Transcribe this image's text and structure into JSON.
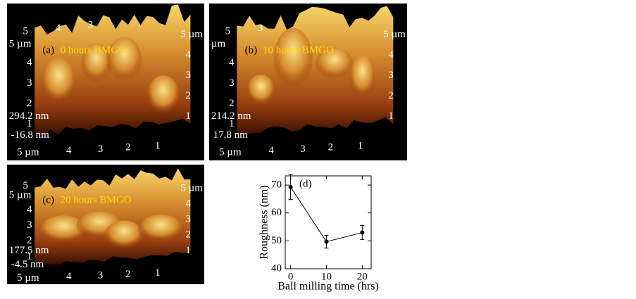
{
  "panels": [
    {
      "label": "(a)",
      "caption": "0 hours BMGO",
      "top_ticks": [
        "5",
        "4",
        "3"
      ],
      "unit_left": "5 µm",
      "left_ticks": [
        "4",
        "3",
        "2",
        "1"
      ],
      "z_max": "294.2 nm",
      "z_min": "-16.8 nm",
      "right_ticks": [
        "5 µm",
        "4",
        "3",
        "2",
        "1"
      ],
      "bottom_ticks": [
        "5 µm",
        "4",
        "3",
        "2",
        "1"
      ]
    },
    {
      "label": "(b)",
      "caption": "10 hours BMGO",
      "top_ticks": [
        "5",
        "3"
      ],
      "unit_left": "µm",
      "left_ticks": [
        "4",
        "3",
        "2",
        "1"
      ],
      "z_max": "214.2 nm",
      "z_min": "17.8 nm",
      "right_ticks": [
        "5 µm",
        "4",
        "3",
        "2",
        "1"
      ],
      "bottom_ticks": [
        "5 µm",
        "4",
        "3",
        "2",
        "1"
      ]
    },
    {
      "label": "(c)",
      "caption": "20 hours BMGO",
      "top_ticks": [
        "5"
      ],
      "unit_left": "5 µm",
      "left_ticks": [
        "4",
        "3",
        "2",
        "1"
      ],
      "z_max": "177.5 nm",
      "z_min": "-4.5 nm",
      "right_ticks": [
        "5 µm",
        "4",
        "3",
        "2",
        "1"
      ],
      "bottom_ticks": [
        "5 µm",
        "4",
        "3",
        "2",
        "1"
      ]
    }
  ],
  "chart_data": {
    "type": "line",
    "label": "(d)",
    "x_label": "Ball milling time (hrs)",
    "y_label": "Roughness (nm)",
    "x": [
      0,
      10,
      20
    ],
    "values": [
      69.3,
      49.7,
      53.0
    ],
    "errors": [
      4.5,
      2.3,
      2.5
    ],
    "color": "#000000",
    "xlim": [
      -1.5,
      22.5
    ],
    "xticks": [
      0,
      10,
      20
    ],
    "ylim": [
      40,
      73.3
    ],
    "yticks": [
      40,
      50,
      60,
      70
    ]
  }
}
